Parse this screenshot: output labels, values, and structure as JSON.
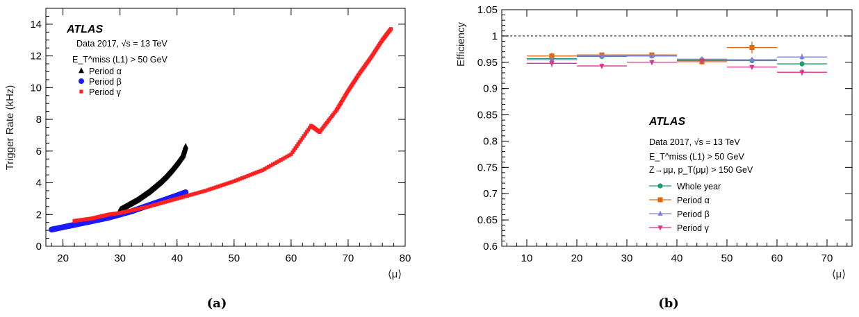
{
  "chart_data": [
    {
      "type": "scatter",
      "panel_label": "(a)",
      "title": "ATLAS",
      "subtitle_lines": [
        "Data 2017, √s = 13 TeV",
        "E_T^miss (L1) > 50 GeV"
      ],
      "xlabel": "⟨μ⟩",
      "ylabel": "Trigger Rate (kHz)",
      "xlim": [
        17,
        80
      ],
      "ylim": [
        0,
        15
      ],
      "xticks": [
        20,
        30,
        40,
        50,
        60,
        70,
        80
      ],
      "yticks": [
        0,
        2,
        4,
        6,
        8,
        10,
        12,
        14
      ],
      "legend_position": "top-left",
      "series": [
        {
          "name": "Period α",
          "color": "#000000",
          "marker": "triangle",
          "x": [
            30,
            31,
            32,
            33,
            34,
            35,
            36,
            37,
            38,
            39,
            40,
            41,
            41.5
          ],
          "y": [
            2.3,
            2.5,
            2.7,
            2.9,
            3.15,
            3.4,
            3.7,
            4.0,
            4.35,
            4.75,
            5.2,
            5.7,
            6.3
          ]
        },
        {
          "name": "Period β",
          "color": "#1a1aff",
          "marker": "circle",
          "x": [
            18,
            20,
            22,
            24,
            26,
            28,
            30,
            32,
            34,
            36,
            38,
            40,
            41.5
          ],
          "y": [
            1.05,
            1.2,
            1.35,
            1.5,
            1.65,
            1.8,
            2.0,
            2.2,
            2.45,
            2.7,
            2.95,
            3.2,
            3.4
          ]
        },
        {
          "name": "Period γ",
          "color": "#ff2020",
          "marker": "square",
          "x": [
            22,
            25,
            28,
            30,
            35,
            40,
            45,
            50,
            55,
            60,
            63.5,
            65,
            68,
            70,
            72,
            74,
            76,
            77.5
          ],
          "y": [
            1.6,
            1.75,
            2.0,
            2.1,
            2.5,
            3.0,
            3.5,
            4.1,
            4.8,
            5.8,
            7.6,
            7.2,
            8.6,
            9.8,
            10.9,
            11.9,
            13.0,
            13.7
          ]
        }
      ]
    },
    {
      "type": "scatter",
      "panel_label": "(b)",
      "title": "ATLAS",
      "subtitle_lines": [
        "Data 2017, √s = 13 TeV",
        "E_T^miss (L1) > 50 GeV",
        "Z→μμ, p_T(μμ) > 150 GeV"
      ],
      "xlabel": "⟨μ⟩",
      "ylabel": "Efficiency",
      "xlim": [
        5,
        75
      ],
      "ylim": [
        0.6,
        1.05
      ],
      "xticks": [
        10,
        20,
        30,
        40,
        50,
        60,
        70
      ],
      "yticks": [
        0.6,
        0.65,
        0.7,
        0.75,
        0.8,
        0.85,
        0.9,
        0.95,
        1,
        1.05
      ],
      "ytick_labels": [
        "0.6",
        "0.65",
        "0.7",
        "0.75",
        "0.8",
        "0.85",
        "0.9",
        "0.95",
        "1",
        "1.05"
      ],
      "reference_line": 1,
      "legend_position": "lower-center",
      "series": [
        {
          "name": "Whole year",
          "color": "#1a9e6e",
          "marker": "circle",
          "x": [
            15,
            25,
            35,
            45,
            55,
            65
          ],
          "xerr": 5,
          "y": [
            0.957,
            0.961,
            0.962,
            0.955,
            0.953,
            0.947
          ],
          "yerr": [
            0.004,
            0.003,
            0.003,
            0.003,
            0.004,
            0.005
          ]
        },
        {
          "name": "Period α",
          "color": "#e06a10",
          "marker": "square",
          "x": [
            15,
            25,
            35,
            45,
            55
          ],
          "xerr": 5,
          "y": [
            0.962,
            0.964,
            0.964,
            0.951,
            0.978
          ],
          "yerr": [
            0.006,
            0.004,
            0.004,
            0.005,
            0.011
          ]
        },
        {
          "name": "Period β",
          "color": "#8080d8",
          "marker": "triangle",
          "x": [
            15,
            25,
            35,
            45,
            55,
            65
          ],
          "xerr": 5,
          "y": [
            0.955,
            0.962,
            0.962,
            0.956,
            0.955,
            0.96
          ],
          "yerr": [
            0.005,
            0.003,
            0.003,
            0.004,
            0.005,
            0.006
          ]
        },
        {
          "name": "Period γ",
          "color": "#e0308a",
          "marker": "triangle-down",
          "x": [
            15,
            25,
            35,
            45,
            55,
            65
          ],
          "xerr": 5,
          "y": [
            0.948,
            0.943,
            0.95,
            0.953,
            0.941,
            0.931
          ],
          "yerr": [
            0.007,
            0.005,
            0.005,
            0.004,
            0.004,
            0.006
          ]
        }
      ]
    }
  ]
}
